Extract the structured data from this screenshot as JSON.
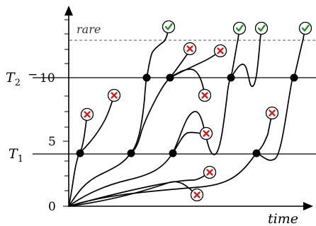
{
  "diagram": {
    "rare_label": "rare",
    "time_label": "time",
    "y_tick_0": "0",
    "y_tick_5": "5",
    "y_tick_10": "10",
    "threshold_1": "T1",
    "threshold_2": "T2",
    "colors": {
      "success": "#2e8b2e",
      "failure": "#cc1f1f",
      "rare_line": "#555555"
    },
    "icons": {
      "success": "check-icon",
      "failure": "cross-icon"
    }
  }
}
